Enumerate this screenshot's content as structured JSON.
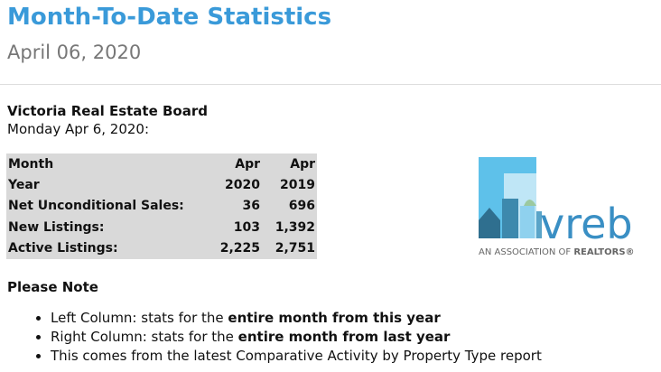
{
  "header": {
    "title": "Month-To-Date Statistics",
    "date": "April 06, 2020"
  },
  "board": {
    "name": "Victoria Real Estate Board",
    "day": "Monday Apr 6, 2020:"
  },
  "table": {
    "rows": [
      [
        "Month",
        "Apr",
        "Apr"
      ],
      [
        "Year",
        "2020",
        "2019"
      ],
      [
        "Net Unconditional Sales:",
        "36",
        "696"
      ],
      [
        "New Listings:",
        "103",
        "1,392"
      ],
      [
        "Active Listings:",
        "2,225",
        "2,751"
      ]
    ]
  },
  "logo": {
    "word": "vreb",
    "tagline": "AN ASSOCIATION OF",
    "tagline_bold": "REALTORS®"
  },
  "notes": {
    "heading": "Please Note",
    "items": [
      {
        "text": "Left Column: stats for the ",
        "bold": "entire month from this year"
      },
      {
        "text": "Right Column: stats for the ",
        "bold": "entire month from last year"
      },
      {
        "text": "This comes from the latest Comparative Activity by Property Type report"
      }
    ]
  }
}
